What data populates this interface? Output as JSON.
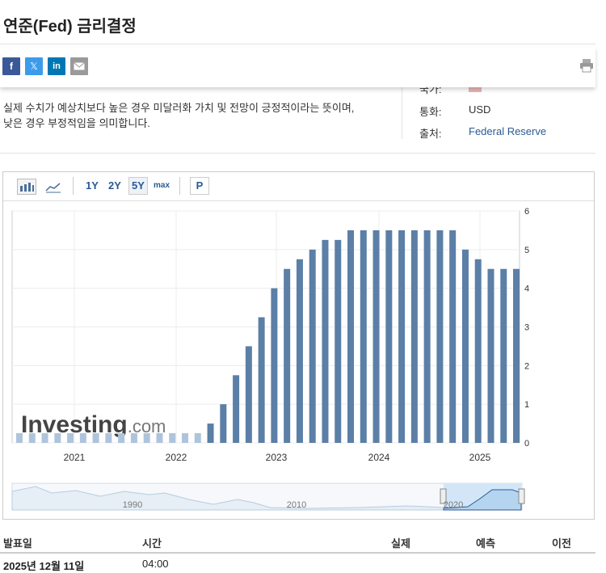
{
  "page": {
    "title": "연준(Fed) 금리결정",
    "description_line1": "실제 수치가 예상치보다 높은 경우 미달러화 가치 및 전망이 긍정적이라는 뜻이며,",
    "description_line2": "낮은 경우 부정적임을 의미합니다."
  },
  "share": {
    "facebook_label": "f",
    "x_label": "𝕏",
    "linkedin_label": "in",
    "email_icon": "envelope-icon",
    "print_icon": "printer-icon",
    "colors": {
      "facebook": "#3b5998",
      "x": "#3d9bea",
      "linkedin": "#0077b5",
      "email": "#9a9a9a"
    }
  },
  "meta": {
    "country_label": "국가:",
    "currency_label": "통화:",
    "currency_value": "USD",
    "source_label": "출처:",
    "source_value": "Federal Reserve"
  },
  "toolbar": {
    "bar_chart_icon": "bar-chart-icon",
    "line_chart_icon": "line-chart-icon",
    "range_1y": "1Y",
    "range_2y": "2Y",
    "range_5y": "5Y",
    "range_max": "max",
    "selected_range": "5Y",
    "p_button": "P"
  },
  "chart_data": {
    "type": "bar",
    "watermark": "Investing.com",
    "ylim": [
      0,
      6
    ],
    "y_ticks": [
      "0",
      "1",
      "2",
      "3",
      "4",
      "5",
      "6"
    ],
    "x_ticks": [
      "2021",
      "2022",
      "2023",
      "2024",
      "2025"
    ],
    "values": [
      0.25,
      0.25,
      0.25,
      0.25,
      0.25,
      0.25,
      0.25,
      0.25,
      0.25,
      0.25,
      0.25,
      0.25,
      0.25,
      0.25,
      0.25,
      0.5,
      1.0,
      1.75,
      2.5,
      3.25,
      4.0,
      4.5,
      4.75,
      5.0,
      5.25,
      5.25,
      5.5,
      5.5,
      5.5,
      5.5,
      5.5,
      5.5,
      5.5,
      5.5,
      5.5,
      5.0,
      4.75,
      4.5,
      4.5,
      4.5
    ],
    "colors": {
      "bar": "#5b7fa6",
      "bar_faded": "#aec4dc"
    },
    "navigator_labels": [
      "1990",
      "2010",
      "2020"
    ]
  },
  "table": {
    "headers": {
      "date": "발표일",
      "time": "시간",
      "actual": "실제",
      "forecast": "예측",
      "previous": "이전"
    },
    "row1": {
      "date": "2025년 12월 11일",
      "time": "04:00"
    }
  }
}
